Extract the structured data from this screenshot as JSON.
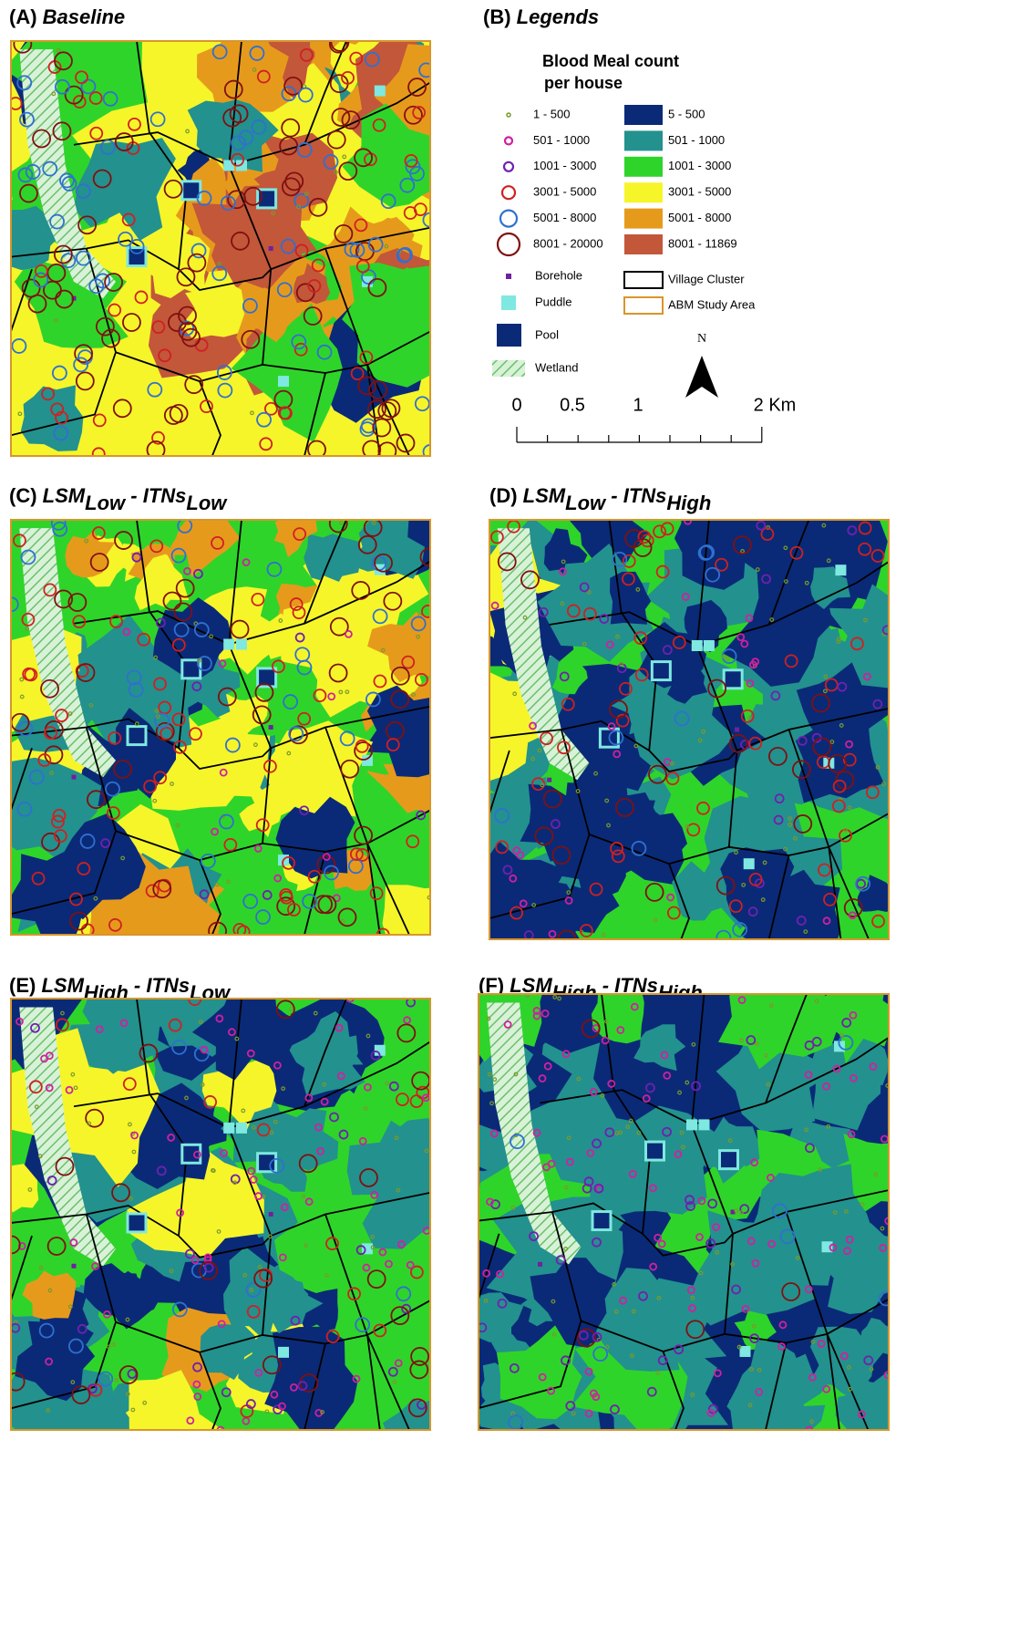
{
  "panels": [
    {
      "label": "(A)",
      "title": "Baseline"
    },
    {
      "label": "(B)",
      "title": "Legends"
    },
    {
      "label": "(C)",
      "title": {
        "a": "LSM",
        "a_sub": "Low",
        "sep": "-",
        "b": "ITNs",
        "b_sub": "Low"
      }
    },
    {
      "label": "(D)",
      "title": {
        "a": "LSM",
        "a_sub": "Low",
        "sep": "-",
        "b": "ITNs",
        "b_sub": "High"
      }
    },
    {
      "label": "(E)",
      "title": {
        "a": "LSM",
        "a_sub": "High",
        "sep": "-",
        "b": "ITNs",
        "b_sub": "Low"
      }
    },
    {
      "label": "(F)",
      "title": {
        "a": "LSM",
        "a_sub": "High",
        "sep": "-",
        "b": "ITNs",
        "b_sub": "High"
      }
    }
  ],
  "legend": {
    "title": [
      "Blood Meal count",
      "per house"
    ],
    "house_classes": [
      {
        "label": "1 - 500",
        "color": "#7a9a2a"
      },
      {
        "label": "501 - 1000",
        "color": "#d020a0"
      },
      {
        "label": "1001 - 3000",
        "color": "#7020b0"
      },
      {
        "label": "3001 - 5000",
        "color": "#d02020"
      },
      {
        "label": "5001 - 8000",
        "color": "#3070d0"
      },
      {
        "label": "8001 - 20000",
        "color": "#801010"
      }
    ],
    "surface_classes": [
      {
        "label": "5 - 500",
        "color": "#0a2a78"
      },
      {
        "label": "501 - 1000",
        "color": "#23918e"
      },
      {
        "label": "1001 - 3000",
        "color": "#2fd42a"
      },
      {
        "label": "3001 - 5000",
        "color": "#f6f52a"
      },
      {
        "label": "5001 - 8000",
        "color": "#e69a1c"
      },
      {
        "label": "8001 - 11869",
        "color": "#c2573a"
      }
    ],
    "features": [
      {
        "label": "Borehole",
        "color": "#7020a0"
      },
      {
        "label": "Puddle",
        "color": "#7fe8e0"
      },
      {
        "label": "Pool",
        "color": "#0a2a78"
      },
      {
        "label": "Wetland",
        "color": "#7fc87f"
      }
    ],
    "boundaries": [
      {
        "label": "Village Cluster",
        "color": "#000000"
      },
      {
        "label": "ABM Study Area",
        "color": "#d8962a"
      }
    ],
    "north": "N",
    "scale": [
      "0",
      "0.5",
      "1",
      "2 Km"
    ]
  }
}
